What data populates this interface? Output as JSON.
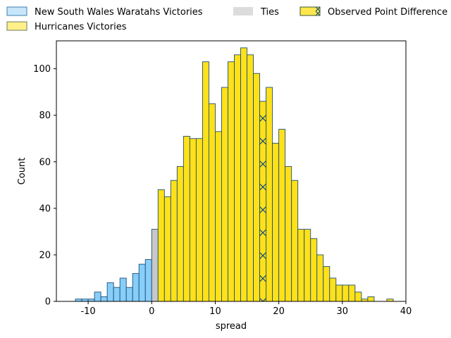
{
  "chart_data": {
    "type": "bar",
    "xlabel": "spread",
    "ylabel": "Count",
    "xlim": [
      -15,
      40
    ],
    "ylim": [
      0,
      112
    ],
    "x_ticks": [
      "-10",
      "0",
      "10",
      "20",
      "30",
      "40"
    ],
    "y_ticks": [
      "0",
      "20",
      "40",
      "60",
      "80",
      "100"
    ],
    "x_tick_values": [
      -10,
      0,
      10,
      20,
      30,
      40
    ],
    "y_tick_values": [
      0,
      20,
      40,
      60,
      80,
      100
    ],
    "bin_width": 1,
    "legend": {
      "placement": "top",
      "entries": [
        {
          "label": "New South Wales Waratahs Victories",
          "color": "#87cefa"
        },
        {
          "label": "Hurricanes Victories",
          "color": "#ffe119"
        },
        {
          "label": "Ties",
          "color": "#c8c8c8"
        },
        {
          "label": "Observed Point Difference",
          "color": "#ffe119"
        }
      ]
    },
    "series": [
      {
        "name": "New South Wales Waratahs Victories",
        "color": "#87cefa",
        "bin_starts": [
          -12,
          -11,
          -10,
          -9,
          -8,
          -7,
          -6,
          -5,
          -4,
          -3,
          -2,
          -1
        ],
        "values": [
          1,
          1,
          1,
          4,
          2,
          8,
          6,
          10,
          6,
          12,
          16,
          18
        ]
      },
      {
        "name": "Ties",
        "color": "#c8c8c8",
        "bin_starts": [
          0
        ],
        "values": [
          31
        ]
      },
      {
        "name": "Hurricanes Victories",
        "color": "#ffe119",
        "bin_starts": [
          1,
          2,
          3,
          4,
          5,
          6,
          7,
          8,
          9,
          10,
          11,
          12,
          13,
          14,
          15,
          16,
          17,
          18,
          19,
          20,
          21,
          22,
          23,
          24,
          25,
          26,
          27,
          28,
          29,
          30,
          31,
          32,
          33,
          34,
          35,
          36,
          37
        ],
        "values": [
          48,
          45,
          52,
          58,
          71,
          70,
          70,
          103,
          85,
          73,
          92,
          103,
          106,
          109,
          106,
          98,
          86,
          92,
          68,
          74,
          58,
          52,
          31,
          31,
          27,
          20,
          15,
          10,
          7,
          7,
          7,
          4,
          1,
          2,
          0,
          0,
          1
        ]
      }
    ],
    "observed": {
      "name": "Observed Point Difference",
      "bin_start": 17,
      "value": 86,
      "color": "#ffe119"
    }
  }
}
